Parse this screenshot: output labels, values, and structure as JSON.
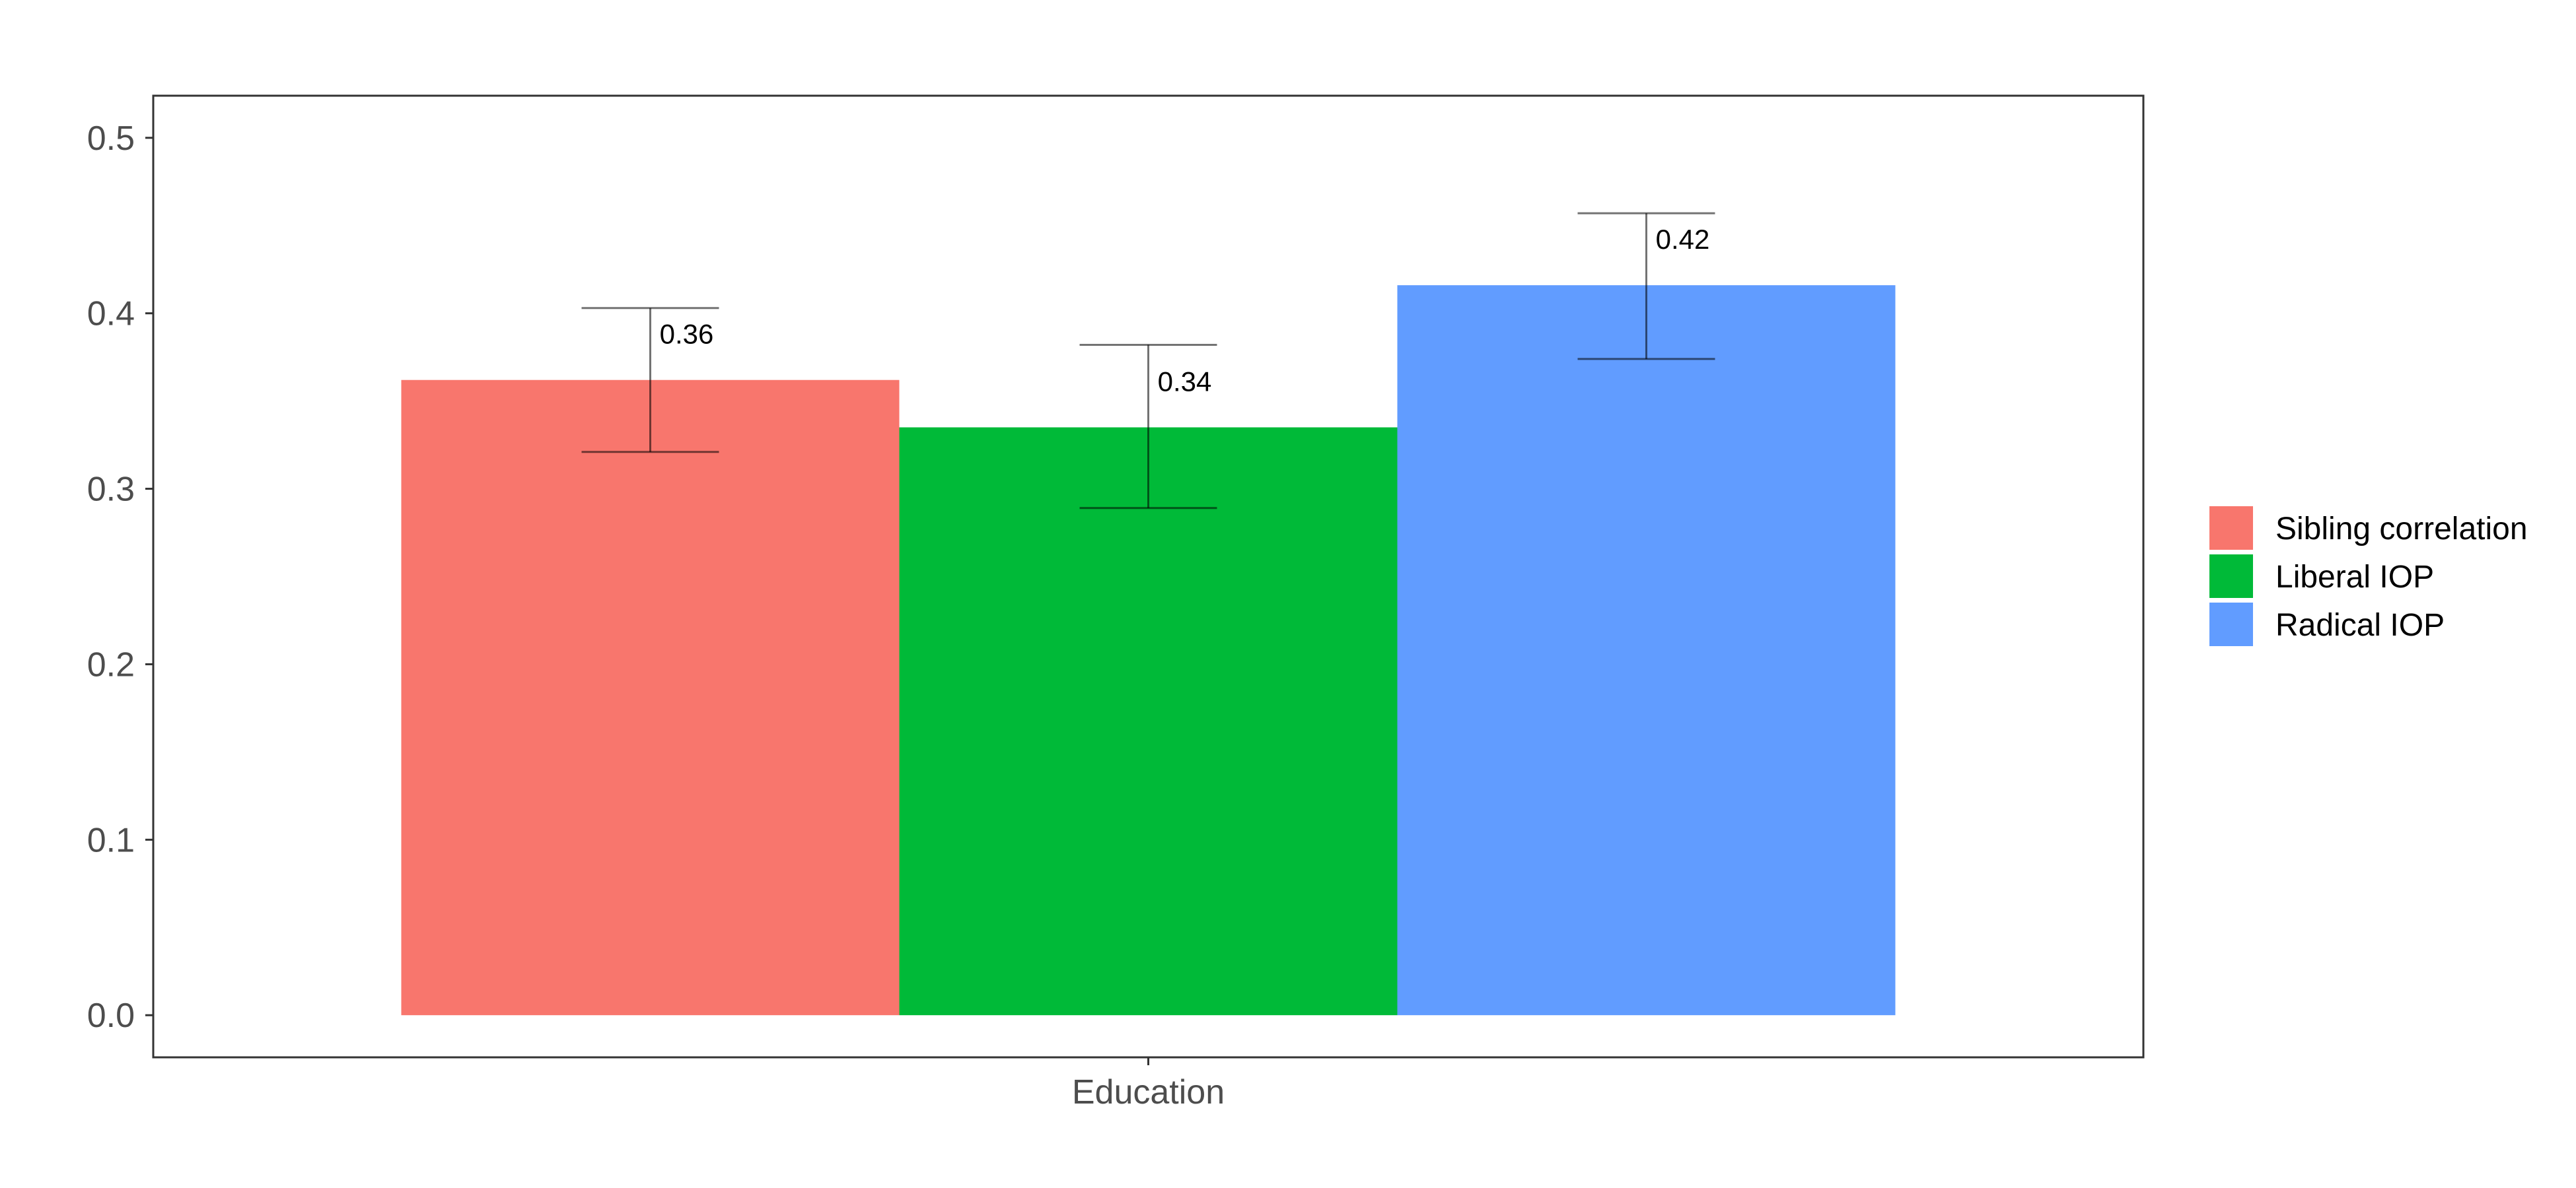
{
  "chart_data": {
    "type": "bar",
    "categories": [
      "Education"
    ],
    "series": [
      {
        "name": "Sibling correlation",
        "value": 0.362,
        "error_low": 0.321,
        "error_high": 0.403,
        "label": "0.36",
        "color": "#F8766D"
      },
      {
        "name": "Liberal IOP",
        "value": 0.335,
        "error_low": 0.289,
        "error_high": 0.382,
        "label": "0.34",
        "color": "#00BA38"
      },
      {
        "name": "Radical IOP",
        "value": 0.416,
        "error_low": 0.374,
        "error_high": 0.457,
        "label": "0.42",
        "color": "#619CFF"
      }
    ],
    "y_ticks": [
      "0.0",
      "0.1",
      "0.2",
      "0.3",
      "0.4",
      "0.5"
    ],
    "y_tick_values": [
      0,
      0.1,
      0.2,
      0.3,
      0.4,
      0.5
    ],
    "ylim": [
      -0.024,
      0.524
    ],
    "title": "",
    "xlabel": "",
    "ylabel": "",
    "legend": {
      "position": "right"
    },
    "grid": false
  }
}
